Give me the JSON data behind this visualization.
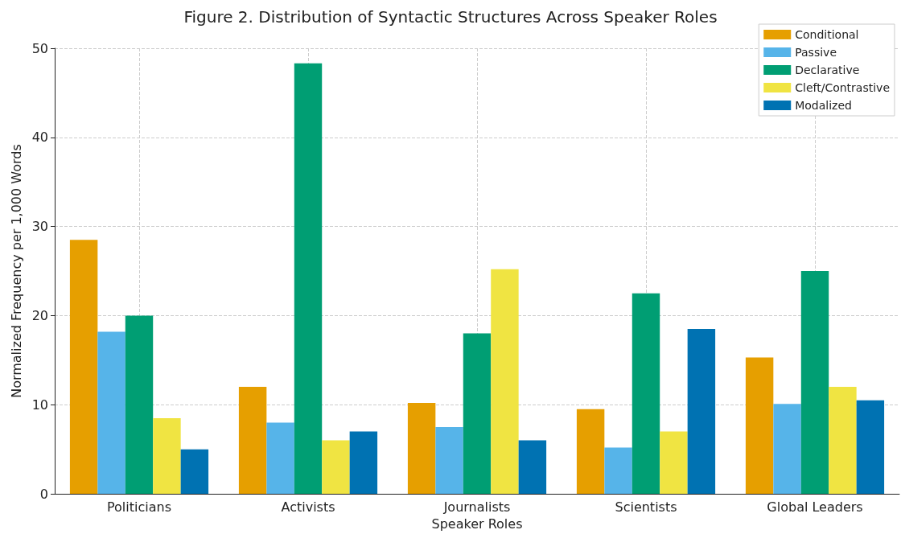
{
  "chart_data": {
    "type": "bar",
    "title": "Figure 2. Distribution of Syntactic Structures Across Speaker Roles",
    "xlabel": "Speaker Roles",
    "ylabel": "Normalized Frequency per 1,000 Words",
    "categories": [
      "Politicians",
      "Activists",
      "Journalists",
      "Scientists",
      "Global Leaders"
    ],
    "series": [
      {
        "name": "Conditional",
        "color": "#e69f00",
        "values": [
          28.5,
          12,
          10.2,
          9.5,
          15.3
        ]
      },
      {
        "name": "Passive",
        "color": "#56b4e9",
        "values": [
          18.2,
          8,
          7.5,
          5.2,
          10.1
        ]
      },
      {
        "name": "Declarative",
        "color": "#009e73",
        "values": [
          20,
          48.3,
          18,
          22.5,
          25
        ]
      },
      {
        "name": "Cleft/Contrastive",
        "color": "#f0e442",
        "values": [
          8.5,
          6,
          25.2,
          7,
          12
        ]
      },
      {
        "name": "Modalized",
        "color": "#0072b2",
        "values": [
          5,
          7,
          6,
          18.5,
          10.5
        ]
      }
    ],
    "ylim": [
      0,
      50
    ],
    "yticks": [
      0,
      10,
      20,
      30,
      40,
      50
    ],
    "grid": true,
    "legend": "top right"
  }
}
